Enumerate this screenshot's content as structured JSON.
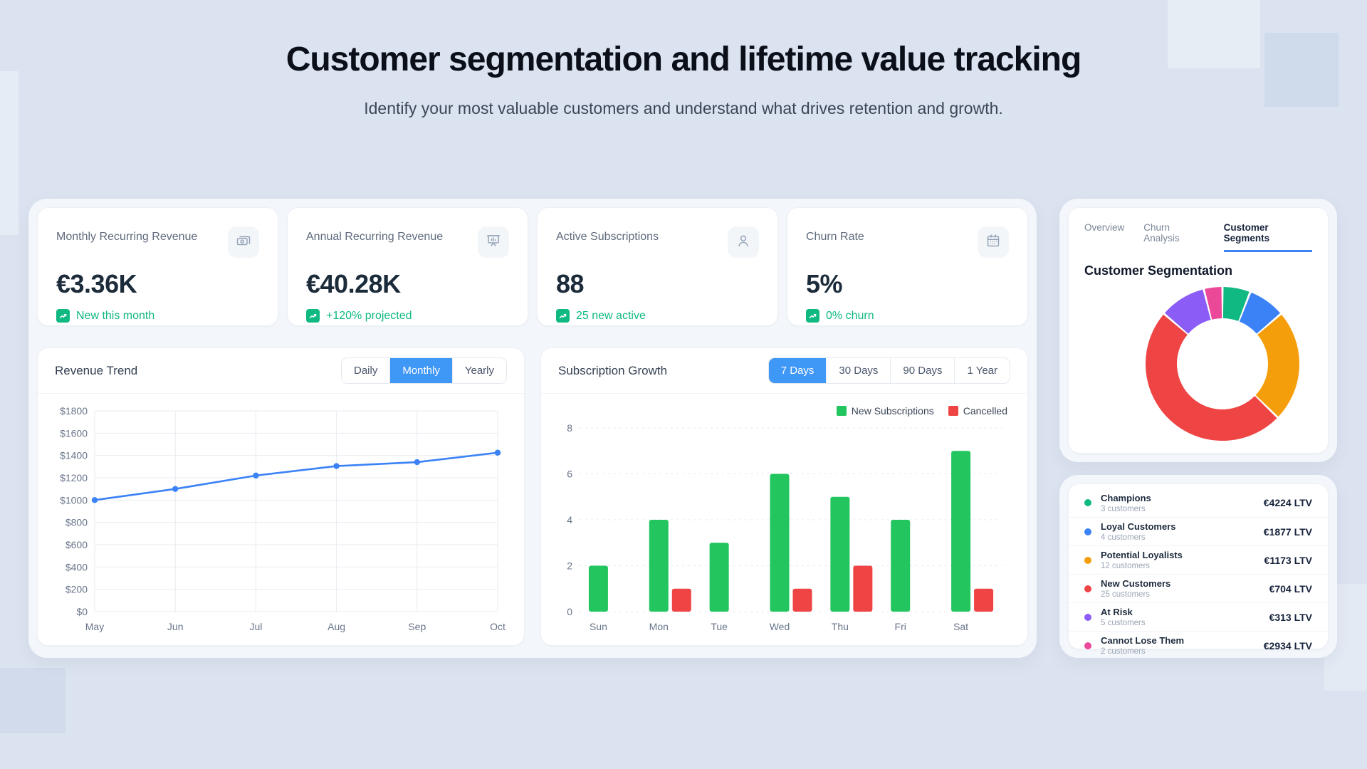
{
  "colors": {
    "accent-blue": "#3f97f6",
    "underline-blue": "#3b82f6",
    "badge-green": "#10b981"
  },
  "page": {
    "title": "Customer segmentation and lifetime value tracking",
    "subtitle": "Identify your most valuable customers and understand what drives retention and growth."
  },
  "stats": [
    {
      "label": "Monthly Recurring Revenue",
      "icon": "banknotes-icon",
      "value": "€3.36K",
      "badge": "New this month"
    },
    {
      "label": "Annual Recurring Revenue",
      "icon": "presentation-chart-icon",
      "value": "€40.28K",
      "badge": "+120% projected"
    },
    {
      "label": "Active Subscriptions",
      "icon": "user-icon",
      "value": "88",
      "badge": "25 new active"
    },
    {
      "label": "Churn Rate",
      "icon": "calendar-icon",
      "value": "5%",
      "badge": "0% churn"
    }
  ],
  "revenue_trend": {
    "title": "Revenue Trend",
    "toggles": [
      "Daily",
      "Monthly",
      "Yearly"
    ],
    "active_toggle": "Monthly"
  },
  "subscription_growth": {
    "title": "Subscription Growth",
    "toggles": [
      "7 Days",
      "30 Days",
      "90 Days",
      "1 Year"
    ],
    "active_toggle": "7 Days",
    "legend": [
      {
        "label": "New Subscriptions",
        "color": "#22c55e"
      },
      {
        "label": "Cancelled",
        "color": "#ef4444"
      }
    ]
  },
  "segments_panel": {
    "tabs": [
      "Overview",
      "Churn Analysis",
      "Customer Segments"
    ],
    "active_tab": "Customer Segments",
    "heading": "Customer Segmentation"
  },
  "segments": [
    {
      "name": "Champions",
      "count": "3 customers",
      "ltv": "€4224 LTV",
      "color": "#10b981"
    },
    {
      "name": "Loyal Customers",
      "count": "4 customers",
      "ltv": "€1877 LTV",
      "color": "#3b82f6"
    },
    {
      "name": "Potential Loyalists",
      "count": "12 customers",
      "ltv": "€1173 LTV",
      "color": "#f59e0b"
    },
    {
      "name": "New Customers",
      "count": "25 customers",
      "ltv": "€704 LTV",
      "color": "#ef4444"
    },
    {
      "name": "At Risk",
      "count": "5 customers",
      "ltv": "€313 LTV",
      "color": "#8b5cf6"
    },
    {
      "name": "Cannot Lose Them",
      "count": "2 customers",
      "ltv": "€2934 LTV",
      "color": "#ec4899"
    }
  ],
  "chart_data": [
    {
      "id": "revenue-trend",
      "type": "line",
      "title": "Revenue Trend",
      "x": [
        "May",
        "Jun",
        "Jul",
        "Aug",
        "Sep",
        "Oct"
      ],
      "values": [
        1000,
        1100,
        1220,
        1305,
        1340,
        1425
      ],
      "ylim": [
        0,
        1800
      ],
      "ytick_step": 200,
      "ytick_prefix": "$",
      "grid": "solid",
      "line_color": "#3b82f6",
      "legend_position": "none"
    },
    {
      "id": "subscription-growth",
      "type": "bar",
      "title": "Subscription Growth",
      "categories": [
        "Sun",
        "Mon",
        "Tue",
        "Wed",
        "Thu",
        "Fri",
        "Sat"
      ],
      "series": [
        {
          "name": "New Subscriptions",
          "color": "#22c55e",
          "values": [
            2,
            4,
            3,
            6,
            5,
            4,
            7
          ]
        },
        {
          "name": "Cancelled",
          "color": "#ef4444",
          "values": [
            0,
            1,
            0,
            1,
            2,
            0,
            1
          ]
        }
      ],
      "ylim": [
        0,
        8
      ],
      "ytick_step": 2,
      "grid": "dashed",
      "legend_position": "top-right"
    },
    {
      "id": "customer-segmentation",
      "type": "pie",
      "donut": true,
      "title": "Customer Segmentation",
      "labels": [
        "Champions",
        "Loyal Customers",
        "Potential Loyalists",
        "New Customers",
        "At Risk",
        "Cannot Lose Them"
      ],
      "values": [
        3,
        4,
        12,
        25,
        5,
        2
      ],
      "ltv": [
        "€4224 LTV",
        "€1877 LTV",
        "€1173 LTV",
        "€704 LTV",
        "€313 LTV",
        "€2934 LTV"
      ],
      "colors": [
        "#10b981",
        "#3b82f6",
        "#f59e0b",
        "#ef4444",
        "#8b5cf6",
        "#ec4899"
      ],
      "start_angle_deg": -90,
      "clockwise": true
    }
  ]
}
